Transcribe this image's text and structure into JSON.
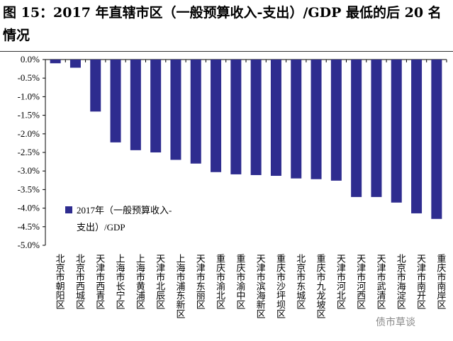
{
  "title": "图 15：2017 年直辖市区（一般预算收入-支出）/GDP 最低的后 20 名情况",
  "watermark": "债市草谈",
  "chart_data": {
    "type": "bar",
    "title": "",
    "xlabel": "",
    "ylabel": "",
    "ylim": [
      -0.05,
      0
    ],
    "yticks": [
      "0.0%",
      "-0.5%",
      "-1.0%",
      "-1.5%",
      "-2.0%",
      "-2.5%",
      "-3.0%",
      "-3.5%",
      "-4.0%",
      "-4.5%",
      "-5.0%"
    ],
    "grid": false,
    "legend_position": "bottom-left",
    "color": "#2E2C8F",
    "categories": [
      "北京市朝阳区",
      "北京市西城区",
      "天津市西青区",
      "上海市长宁区",
      "上海市黄浦区",
      "天津市北辰区",
      "上海市浦东新区",
      "天津市东丽区",
      "重庆市渝北区",
      "重庆市渝中区",
      "天津市滨海新区",
      "重庆市沙坪坝区",
      "北京市东城区",
      "重庆市九龙坡区",
      "天津市河北区",
      "天津市河西区",
      "天津市武清区",
      "北京市海淀区",
      "天津市南开区",
      "重庆市南岸区"
    ],
    "series": [
      {
        "name": "2017年（一般预算收入-支出）/GDP",
        "values": [
          -0.001,
          -0.0022,
          -0.014,
          -0.0223,
          -0.0244,
          -0.025,
          -0.027,
          -0.028,
          -0.0303,
          -0.0309,
          -0.0311,
          -0.0313,
          -0.032,
          -0.0322,
          -0.0326,
          -0.037,
          -0.037,
          -0.0385,
          -0.0414,
          -0.0429
        ]
      }
    ]
  }
}
